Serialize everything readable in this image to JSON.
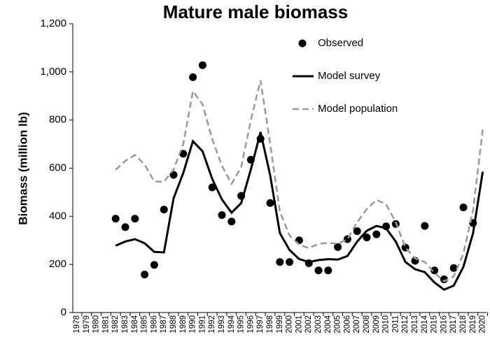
{
  "chart_data": {
    "type": "line",
    "title": "Mature male biomass",
    "y_label": "Biomass (million lb)",
    "categories": [
      "1978",
      "1979",
      "1980",
      "1981",
      "1982",
      "1983",
      "1984",
      "1985",
      "1986",
      "1987",
      "1988",
      "1989",
      "1990",
      "1991",
      "1992",
      "1993",
      "1994",
      "1995",
      "1996",
      "1997",
      "1998",
      "1999",
      "2000",
      "2001",
      "2002",
      "2003",
      "2004",
      "2005",
      "2006",
      "2007",
      "2008",
      "2009",
      "2010",
      "2011",
      "2012",
      "2013",
      "2014",
      "2015",
      "2016",
      "2017",
      "2018",
      "2019",
      "2020"
    ],
    "ylim": [
      0,
      1200
    ],
    "yticks": [
      0,
      200,
      400,
      600,
      800,
      {
        "value": 1000,
        "label": "1,000"
      },
      {
        "value": 1200,
        "label": "1,200"
      }
    ],
    "grid": false,
    "legend": "upper right",
    "series": [
      {
        "name": "Observed",
        "mode": "markers",
        "color": "#000000",
        "values": [
          null,
          null,
          null,
          null,
          390,
          355,
          390,
          158,
          198,
          428,
          572,
          660,
          978,
          1028,
          520,
          405,
          378,
          485,
          635,
          722,
          455,
          210,
          210,
          300,
          205,
          175,
          175,
          272,
          305,
          338,
          312,
          325,
          358,
          368,
          270,
          215,
          360,
          175,
          138,
          185,
          437,
          372,
          null
        ]
      },
      {
        "name": "Model survey",
        "mode": "line",
        "dash": false,
        "color": "#000000",
        "values": [
          null,
          null,
          null,
          null,
          278,
          295,
          305,
          288,
          252,
          250,
          475,
          580,
          712,
          670,
          555,
          470,
          415,
          455,
          595,
          750,
          570,
          330,
          260,
          222,
          210,
          218,
          222,
          220,
          235,
          295,
          340,
          360,
          350,
          295,
          210,
          180,
          168,
          125,
          95,
          112,
          190,
          330,
          585
        ]
      },
      {
        "name": "Model population",
        "mode": "line",
        "dash": true,
        "color": "#999999",
        "values": [
          null,
          null,
          null,
          null,
          593,
          630,
          655,
          615,
          545,
          543,
          595,
          700,
          920,
          865,
          720,
          610,
          535,
          605,
          800,
          965,
          700,
          420,
          320,
          282,
          268,
          285,
          290,
          285,
          305,
          375,
          430,
          468,
          450,
          375,
          270,
          225,
          210,
          165,
          130,
          150,
          245,
          425,
          760
        ]
      }
    ]
  }
}
